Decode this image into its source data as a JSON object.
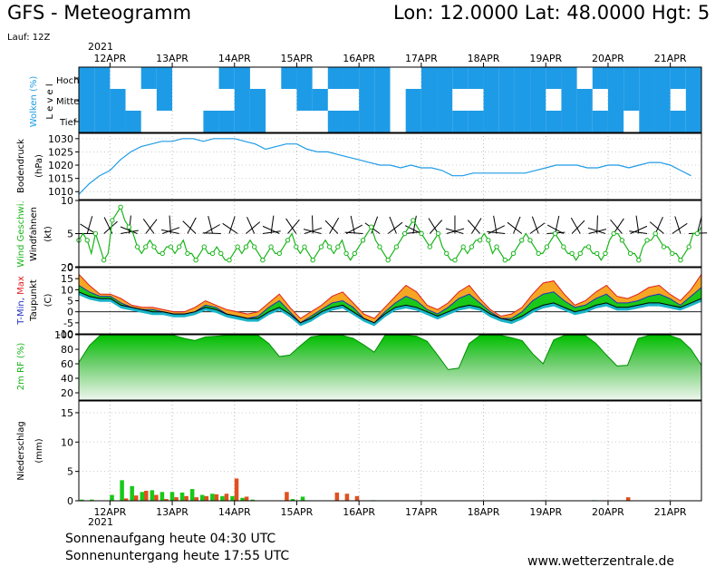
{
  "header": {
    "title": "GFS - Meteogramm",
    "location": "Lon: 12.0000  Lat: 48.0000  Hgt: 5",
    "run": "Lauf: 12Z",
    "year": "2021"
  },
  "date_labels": [
    "12APR",
    "13APR",
    "14APR",
    "15APR",
    "16APR",
    "17APR",
    "18APR",
    "19APR",
    "20APR",
    "21APR"
  ],
  "footer": {
    "sunrise": "Sonnenaufgang heute 04:30 UTC",
    "sunset": "Sonnenuntergang heute 17:55 UTC",
    "website": "www.wetterzentrale.de"
  },
  "colors": {
    "cloud": "#1e9be6",
    "pressure": "#1e9be6",
    "wind_speed": "#19b419",
    "temp_warm": "#f5a623",
    "temp_dew": "#19c819",
    "temp_cold": "#19b4c8",
    "humidity": "#19c819",
    "precip_rain": "#19c819",
    "precip_other": "#e05020"
  },
  "panels": {
    "clouds": {
      "ylabel": "Wolken (%)",
      "level_label": "L e v e l",
      "levels": [
        "Hoch",
        "Mittel",
        "Tief"
      ]
    },
    "pressure": {
      "ylabel": "Bodendruck",
      "unit": "(hPa)"
    },
    "wind": {
      "ylabel": "Wind Geschwi.",
      "sublabel": "Windfahnen",
      "unit": "(kt)"
    },
    "temperature": {
      "ylabel_parts": [
        "T-Min, ",
        "Max"
      ],
      "sublabel": "Taupunkt",
      "unit": "(C)"
    },
    "humidity": {
      "ylabel": "2m RF (%)"
    },
    "precip": {
      "ylabel": "Niederschlag",
      "unit": "(mm)"
    }
  },
  "chart_data": [
    {
      "type": "heatmap",
      "title": "Wolken (%)",
      "rows": [
        "Hoch",
        "Mittel",
        "Tief"
      ],
      "x_start": "12APR",
      "step_hours": 6,
      "values": {
        "Hoch": [
          1,
          1,
          0,
          0,
          1,
          1,
          0,
          0,
          0,
          1,
          1,
          0,
          0,
          1,
          1,
          0,
          1,
          1,
          1,
          1,
          0,
          0,
          1,
          1,
          1,
          1,
          1,
          1,
          1,
          1,
          1,
          1,
          0,
          1,
          1,
          1,
          1,
          1,
          1,
          1,
          1
        ],
        "Mittel": [
          1,
          1,
          1,
          0,
          0,
          1,
          0,
          0,
          0,
          0,
          1,
          1,
          0,
          0,
          1,
          1,
          0,
          0,
          1,
          1,
          0,
          1,
          1,
          1,
          0,
          0,
          1,
          1,
          1,
          1,
          0,
          1,
          1,
          0,
          1,
          1,
          1,
          1,
          0,
          1,
          1
        ],
        "Tief": [
          1,
          1,
          1,
          1,
          0,
          0,
          0,
          0,
          1,
          1,
          1,
          1,
          0,
          0,
          0,
          0,
          1,
          1,
          1,
          1,
          0,
          1,
          1,
          1,
          1,
          1,
          1,
          1,
          1,
          1,
          1,
          1,
          1,
          1,
          1,
          0,
          1,
          1,
          1,
          1,
          1
        ]
      }
    },
    {
      "type": "line",
      "title": "Bodendruck (hPa)",
      "ylim": [
        1007,
        1032
      ],
      "yticks": [
        1010,
        1015,
        1020,
        1025,
        1030
      ],
      "x_start": "12APR",
      "step_hours": 6,
      "values": [
        1009,
        1013,
        1016,
        1018,
        1022,
        1025,
        1027,
        1028,
        1029,
        1029,
        1030,
        1030,
        1029,
        1030,
        1030,
        1030,
        1029,
        1028,
        1026,
        1027,
        1028,
        1028,
        1026,
        1025,
        1025,
        1024,
        1023,
        1022,
        1021,
        1020,
        1020,
        1019,
        1020,
        1019,
        1019,
        1018,
        1016,
        1016,
        1017,
        1017,
        1017,
        1017,
        1017,
        1017,
        1018,
        1019,
        1020,
        1020,
        1020,
        1019,
        1019,
        1020,
        1020,
        1019,
        1020,
        1021,
        1021,
        1020,
        1018,
        1016
      ]
    },
    {
      "type": "line",
      "title": "Wind Geschwi. (kt)",
      "ylim": [
        0,
        10
      ],
      "yticks": [
        0,
        5,
        10
      ],
      "x_start": "12APR",
      "step_hours": 3,
      "values": [
        4,
        5,
        4,
        2,
        5,
        3,
        1,
        2,
        7,
        8,
        9,
        7,
        6,
        5,
        3,
        2,
        3,
        4,
        3,
        2,
        2,
        3,
        3,
        2,
        3,
        4,
        2,
        2,
        1,
        2,
        3,
        2,
        2,
        3,
        2,
        1,
        1,
        2,
        3,
        2,
        3,
        4,
        3,
        2,
        1,
        2,
        3,
        2,
        2,
        3,
        4,
        5,
        3,
        2,
        3,
        2,
        1,
        2,
        3,
        4,
        3,
        2,
        3,
        4,
        2,
        1,
        2,
        3,
        4,
        5,
        6,
        4,
        3,
        2,
        1,
        2,
        3,
        4,
        5,
        6,
        7,
        6,
        5,
        4,
        3,
        4,
        5,
        3,
        2,
        1,
        1,
        2,
        3,
        2,
        3,
        4,
        4,
        5,
        4,
        2,
        3,
        2,
        1,
        1,
        2,
        3,
        4,
        5,
        4,
        3,
        2,
        2,
        3,
        4,
        5,
        4,
        3,
        2,
        2,
        1,
        2,
        3,
        3,
        2,
        2,
        1,
        2,
        4,
        5,
        5,
        4,
        3,
        2,
        2,
        1,
        3,
        4,
        4,
        5,
        4,
        3,
        3,
        2,
        2,
        1,
        2,
        3,
        5,
        5,
        6
      ]
    },
    {
      "type": "area",
      "title": "T-Min, Max / Taupunkt (C)",
      "ylim": [
        -10,
        20
      ],
      "yticks": [
        -10,
        -5,
        0,
        5,
        10,
        15,
        20
      ],
      "x_start": "12APR",
      "step_hours": 6,
      "series": [
        {
          "name": "T-Max",
          "values": [
            17,
            12,
            8,
            8,
            6,
            3,
            2,
            2,
            1,
            0,
            0,
            2,
            5,
            3,
            1,
            0,
            -1,
            0,
            4,
            8,
            2,
            -3,
            0,
            3,
            7,
            9,
            4,
            -1,
            -3,
            2,
            7,
            12,
            9,
            3,
            1,
            4,
            9,
            12,
            6,
            1,
            -2,
            -1,
            2,
            8,
            13,
            14,
            8,
            3,
            5,
            9,
            12,
            7,
            6,
            8,
            11,
            12,
            8,
            5,
            10,
            17
          ]
        },
        {
          "name": "T-Min",
          "values": [
            12,
            9,
            7,
            7,
            4,
            2,
            1,
            1,
            0,
            -1,
            -1,
            0,
            3,
            2,
            -1,
            -2,
            -3,
            -2,
            2,
            5,
            0,
            -5,
            -2,
            1,
            4,
            5,
            2,
            -3,
            -5,
            0,
            4,
            7,
            5,
            1,
            -1,
            2,
            6,
            8,
            4,
            0,
            -3,
            -3,
            0,
            5,
            8,
            9,
            5,
            2,
            3,
            6,
            8,
            4,
            4,
            5,
            7,
            8,
            6,
            3,
            7,
            11
          ]
        },
        {
          "name": "Taupunkt",
          "values": [
            9,
            7,
            6,
            6,
            3,
            2,
            1,
            0,
            0,
            -1,
            -1,
            0,
            2,
            1,
            -1,
            -2,
            -3,
            -3,
            0,
            2,
            -1,
            -5,
            -3,
            0,
            2,
            3,
            0,
            -3,
            -5,
            -1,
            2,
            3,
            2,
            0,
            -2,
            0,
            2,
            3,
            2,
            -1,
            -3,
            -4,
            -2,
            1,
            3,
            4,
            2,
            0,
            1,
            3,
            4,
            2,
            2,
            3,
            4,
            4,
            3,
            2,
            4,
            6
          ]
        }
      ]
    },
    {
      "type": "area",
      "title": "2m RF (%)",
      "ylim": [
        10,
        100
      ],
      "yticks": [
        20,
        40,
        60,
        80,
        100
      ],
      "x_start": "12APR",
      "step_hours": 6,
      "values": [
        62,
        85,
        99,
        99,
        99,
        99,
        99,
        99,
        99,
        99,
        95,
        92,
        97,
        98,
        99,
        99,
        99,
        99,
        88,
        70,
        72,
        85,
        97,
        99,
        99,
        99,
        95,
        86,
        76,
        99,
        99,
        99,
        98,
        91,
        72,
        52,
        54,
        88,
        99,
        99,
        99,
        96,
        92,
        74,
        60,
        93,
        99,
        99,
        99,
        88,
        72,
        57,
        58,
        95,
        99,
        99,
        99,
        94,
        80,
        58
      ]
    },
    {
      "type": "bar",
      "title": "Niederschlag (mm)",
      "ylim": [
        0,
        17
      ],
      "yticks": [
        0,
        5,
        10,
        15
      ],
      "x_start": "12APR",
      "step_hours": 6,
      "values": [
        0.2,
        0.2,
        0,
        1.0,
        3.5,
        2.5,
        1.5,
        1.8,
        1.5,
        1.5,
        1.4,
        2.0,
        1.0,
        1.2,
        0.8,
        0.8,
        0.5,
        0.2,
        0,
        0,
        0,
        0.3,
        0.7,
        0,
        0,
        0,
        0,
        0,
        0,
        0.1,
        0,
        0,
        0,
        0,
        0,
        0,
        0,
        0,
        0,
        0,
        0,
        0,
        0,
        0,
        0,
        0,
        0.1,
        0,
        0,
        0,
        0,
        0.1,
        0,
        0,
        0,
        0,
        0,
        0,
        0,
        0,
        0,
        0
      ],
      "values2": [
        0,
        0,
        0,
        0,
        0.4,
        0.9,
        1.7,
        1.0,
        0.3,
        0.6,
        0.8,
        0.6,
        0.8,
        1.1,
        1.2,
        3.8,
        0.7,
        0,
        0,
        0,
        1.5,
        0,
        0,
        0,
        0,
        1.4,
        1.2,
        0.8,
        0,
        0,
        0,
        0,
        0,
        0,
        0,
        0,
        0,
        0,
        0,
        0,
        0,
        0,
        0,
        0,
        0,
        0,
        0,
        0,
        0,
        0,
        0,
        0,
        0,
        0,
        0.6,
        0,
        0,
        0,
        0,
        0
      ]
    }
  ]
}
